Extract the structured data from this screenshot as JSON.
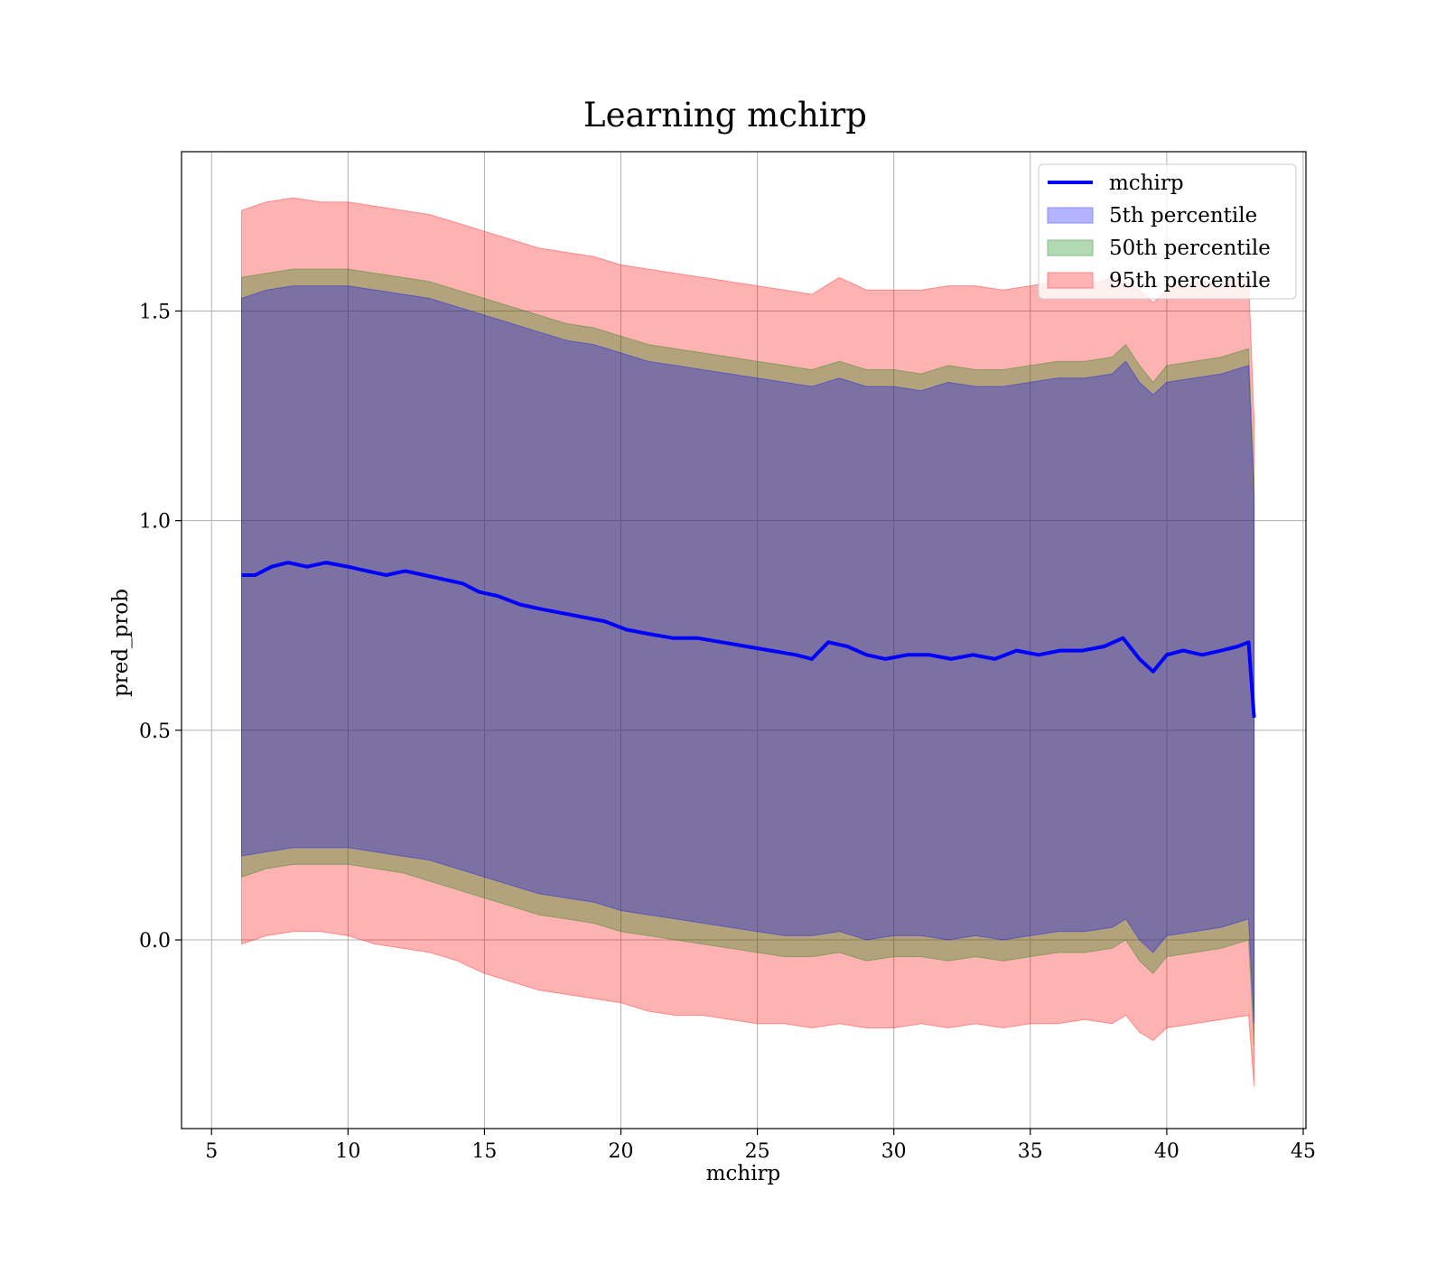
{
  "chart_data": {
    "type": "line",
    "title": "Learning mchirp",
    "xlabel": "mchirp",
    "ylabel": "pred_prob",
    "xlim": [
      3.9,
      45.1
    ],
    "ylim": [
      -0.45,
      1.88
    ],
    "xticks": [
      5,
      10,
      15,
      20,
      25,
      30,
      35,
      40,
      45
    ],
    "xtick_labels": [
      "5",
      "10",
      "15",
      "20",
      "25",
      "30",
      "35",
      "40",
      "45"
    ],
    "yticks": [
      0.0,
      0.5,
      1.0,
      1.5
    ],
    "ytick_labels": [
      "0.0",
      "0.5",
      "1.0",
      "1.5"
    ],
    "grid": true,
    "legend_position": "top-right",
    "legend": [
      {
        "label": "mchirp",
        "kind": "line",
        "color": "#0000ff"
      },
      {
        "label": "5th percentile",
        "kind": "patch",
        "color": "#b3b3ff",
        "edge": "#8c8cff"
      },
      {
        "label": "50th percentile",
        "kind": "patch",
        "color": "#b3d9b3",
        "edge": "#80c080"
      },
      {
        "label": "95th percentile",
        "kind": "patch",
        "color": "#ffb3b3",
        "edge": "#ff8080"
      }
    ],
    "line_series": {
      "name": "mchirp",
      "color": "#0000ff",
      "x": [
        6.1,
        6.6,
        7.2,
        7.8,
        8.5,
        9.2,
        10.0,
        10.7,
        11.4,
        12.1,
        12.8,
        13.5,
        14.2,
        14.8,
        15.5,
        16.3,
        17.0,
        17.8,
        18.6,
        19.4,
        20.2,
        21.0,
        21.9,
        22.8,
        23.7,
        24.6,
        25.5,
        26.4,
        27.0,
        27.6,
        28.3,
        29.0,
        29.7,
        30.5,
        31.3,
        32.1,
        32.9,
        33.7,
        34.5,
        35.3,
        36.1,
        36.9,
        37.7,
        38.4,
        39.0,
        39.5,
        40.0,
        40.6,
        41.3,
        42.0,
        42.6,
        43.0,
        43.2
      ],
      "y": [
        0.87,
        0.87,
        0.89,
        0.9,
        0.89,
        0.9,
        0.89,
        0.88,
        0.87,
        0.88,
        0.87,
        0.86,
        0.85,
        0.83,
        0.82,
        0.8,
        0.79,
        0.78,
        0.77,
        0.76,
        0.74,
        0.73,
        0.72,
        0.72,
        0.71,
        0.7,
        0.69,
        0.68,
        0.67,
        0.71,
        0.7,
        0.68,
        0.67,
        0.68,
        0.68,
        0.67,
        0.68,
        0.67,
        0.69,
        0.68,
        0.69,
        0.69,
        0.7,
        0.72,
        0.67,
        0.64,
        0.68,
        0.69,
        0.68,
        0.69,
        0.7,
        0.71,
        0.53
      ]
    },
    "bands": [
      {
        "name": "95th percentile",
        "color": "#ff0000",
        "x": [
          6.1,
          7.0,
          8.0,
          9.0,
          10.0,
          11.0,
          12.0,
          13.0,
          14.0,
          15.0,
          16.0,
          17.0,
          18.0,
          19.0,
          20.0,
          21.0,
          22.0,
          23.0,
          24.0,
          25.0,
          26.0,
          27.0,
          28.0,
          29.0,
          30.0,
          31.0,
          32.0,
          33.0,
          34.0,
          35.0,
          36.0,
          37.0,
          38.0,
          38.5,
          39.0,
          39.5,
          40.0,
          41.0,
          42.0,
          43.0,
          43.2
        ],
        "upper": [
          1.74,
          1.76,
          1.77,
          1.76,
          1.76,
          1.75,
          1.74,
          1.73,
          1.71,
          1.69,
          1.67,
          1.65,
          1.64,
          1.63,
          1.61,
          1.6,
          1.59,
          1.58,
          1.57,
          1.56,
          1.55,
          1.54,
          1.58,
          1.55,
          1.55,
          1.55,
          1.56,
          1.56,
          1.55,
          1.56,
          1.57,
          1.56,
          1.58,
          1.57,
          1.55,
          1.52,
          1.55,
          1.57,
          1.57,
          1.58,
          1.24
        ],
        "lower": [
          -0.01,
          0.01,
          0.02,
          0.02,
          0.01,
          -0.01,
          -0.02,
          -0.03,
          -0.05,
          -0.08,
          -0.1,
          -0.12,
          -0.13,
          -0.14,
          -0.15,
          -0.17,
          -0.18,
          -0.18,
          -0.19,
          -0.2,
          -0.2,
          -0.21,
          -0.2,
          -0.21,
          -0.21,
          -0.2,
          -0.21,
          -0.2,
          -0.21,
          -0.2,
          -0.2,
          -0.19,
          -0.2,
          -0.18,
          -0.22,
          -0.24,
          -0.21,
          -0.2,
          -0.19,
          -0.18,
          -0.35
        ]
      },
      {
        "name": "50th percentile",
        "color": "#008000",
        "x": [
          6.1,
          7.0,
          8.0,
          9.0,
          10.0,
          11.0,
          12.0,
          13.0,
          14.0,
          15.0,
          16.0,
          17.0,
          18.0,
          19.0,
          20.0,
          21.0,
          22.0,
          23.0,
          24.0,
          25.0,
          26.0,
          27.0,
          28.0,
          29.0,
          30.0,
          31.0,
          32.0,
          33.0,
          34.0,
          35.0,
          36.0,
          37.0,
          38.0,
          38.5,
          39.0,
          39.5,
          40.0,
          41.0,
          42.0,
          43.0,
          43.2
        ],
        "upper": [
          1.58,
          1.59,
          1.6,
          1.6,
          1.6,
          1.59,
          1.58,
          1.57,
          1.55,
          1.53,
          1.51,
          1.49,
          1.47,
          1.46,
          1.44,
          1.42,
          1.41,
          1.4,
          1.39,
          1.38,
          1.37,
          1.36,
          1.38,
          1.36,
          1.36,
          1.35,
          1.37,
          1.36,
          1.36,
          1.37,
          1.38,
          1.38,
          1.39,
          1.42,
          1.37,
          1.33,
          1.37,
          1.38,
          1.39,
          1.41,
          1.1
        ],
        "lower": [
          0.15,
          0.17,
          0.18,
          0.18,
          0.18,
          0.17,
          0.16,
          0.14,
          0.12,
          0.1,
          0.08,
          0.06,
          0.05,
          0.04,
          0.02,
          0.01,
          0.0,
          -0.01,
          -0.02,
          -0.03,
          -0.04,
          -0.04,
          -0.03,
          -0.05,
          -0.04,
          -0.04,
          -0.05,
          -0.04,
          -0.05,
          -0.04,
          -0.03,
          -0.03,
          -0.02,
          0.0,
          -0.05,
          -0.08,
          -0.04,
          -0.03,
          -0.02,
          0.0,
          -0.25
        ]
      },
      {
        "name": "5th percentile",
        "color": "#0000ff",
        "x": [
          6.1,
          7.0,
          8.0,
          9.0,
          10.0,
          11.0,
          12.0,
          13.0,
          14.0,
          15.0,
          16.0,
          17.0,
          18.0,
          19.0,
          20.0,
          21.0,
          22.0,
          23.0,
          24.0,
          25.0,
          26.0,
          27.0,
          28.0,
          29.0,
          30.0,
          31.0,
          32.0,
          33.0,
          34.0,
          35.0,
          36.0,
          37.0,
          38.0,
          38.5,
          39.0,
          39.5,
          40.0,
          41.0,
          42.0,
          43.0,
          43.2
        ],
        "upper": [
          1.53,
          1.55,
          1.56,
          1.56,
          1.56,
          1.55,
          1.54,
          1.53,
          1.51,
          1.49,
          1.47,
          1.45,
          1.43,
          1.42,
          1.4,
          1.38,
          1.37,
          1.36,
          1.35,
          1.34,
          1.33,
          1.32,
          1.34,
          1.32,
          1.32,
          1.31,
          1.33,
          1.32,
          1.32,
          1.33,
          1.34,
          1.34,
          1.35,
          1.38,
          1.33,
          1.3,
          1.33,
          1.34,
          1.35,
          1.37,
          1.05
        ],
        "lower": [
          0.2,
          0.21,
          0.22,
          0.22,
          0.22,
          0.21,
          0.2,
          0.19,
          0.17,
          0.15,
          0.13,
          0.11,
          0.1,
          0.09,
          0.07,
          0.06,
          0.05,
          0.04,
          0.03,
          0.02,
          0.01,
          0.01,
          0.02,
          0.0,
          0.01,
          0.01,
          0.0,
          0.01,
          0.0,
          0.01,
          0.02,
          0.02,
          0.03,
          0.05,
          0.0,
          -0.03,
          0.01,
          0.02,
          0.03,
          0.05,
          -0.2
        ]
      }
    ]
  }
}
